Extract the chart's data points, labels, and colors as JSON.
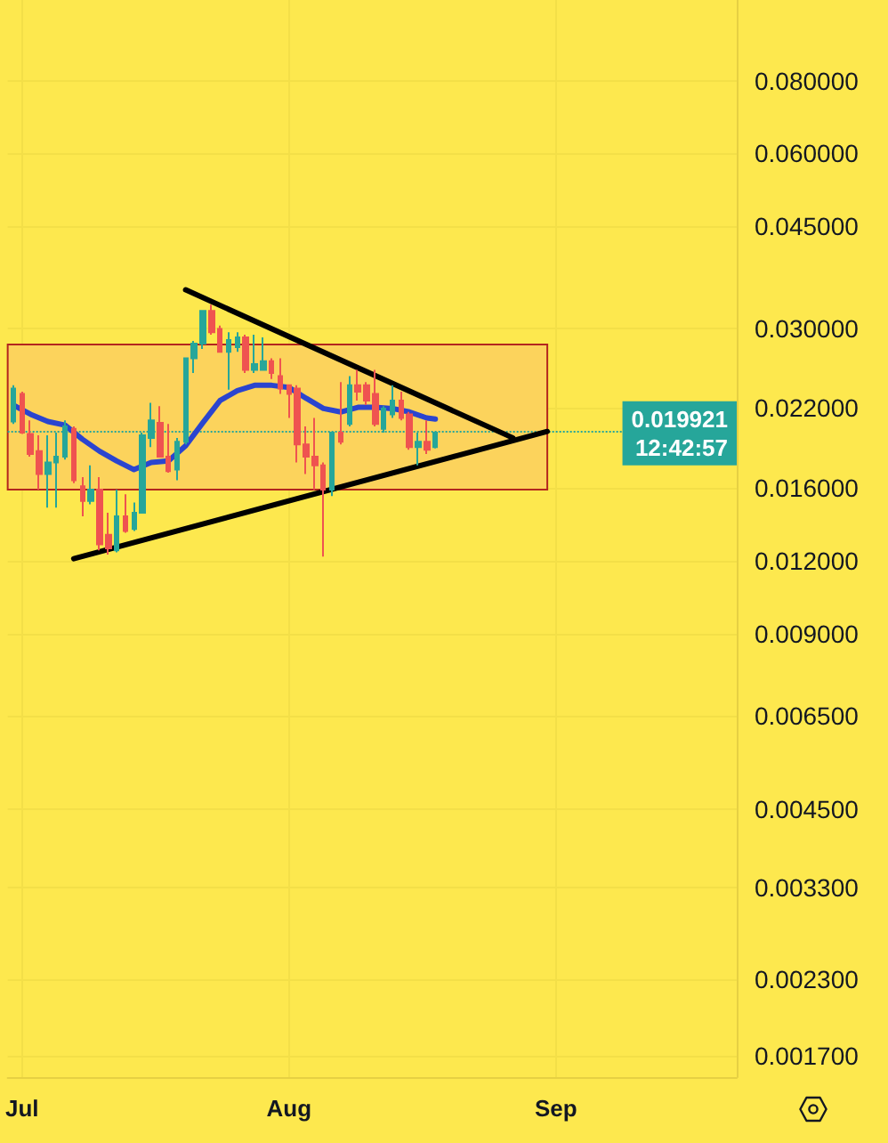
{
  "chart_data": {
    "type": "candlestick",
    "x": [
      "--06-30",
      "--07-01",
      "--07-02",
      "--07-03",
      "--07-04",
      "--07-05",
      "--07-06",
      "--07-07",
      "--07-08",
      "--07-09",
      "--07-10",
      "--07-11",
      "--07-12",
      "--07-13",
      "--07-14",
      "--07-15",
      "--07-16",
      "--07-17",
      "--07-18",
      "--07-19",
      "--07-20",
      "--07-21",
      "--07-22",
      "--07-23",
      "--07-24",
      "--07-25",
      "--07-26",
      "--07-27",
      "--07-28",
      "--07-29",
      "--07-30",
      "--07-31",
      "--08-01",
      "--08-02",
      "--08-03",
      "--08-04",
      "--08-05",
      "--08-06",
      "--08-07",
      "--08-08",
      "--08-09",
      "--08-10",
      "--08-11",
      "--08-12",
      "--08-13",
      "--08-14",
      "--08-15",
      "--08-16",
      "--08-17",
      "--08-18"
    ],
    "ohlc": [
      [
        0.0208,
        0.024,
        0.0206,
        0.0237
      ],
      [
        0.0232,
        0.0234,
        0.0198,
        0.0199
      ],
      [
        0.0198,
        0.0209,
        0.0181,
        0.0183
      ],
      [
        0.0185,
        0.0197,
        0.0159,
        0.0169
      ],
      [
        0.0169,
        0.0197,
        0.0148,
        0.0177
      ],
      [
        0.0177,
        0.0199,
        0.0148,
        0.0181
      ],
      [
        0.0181,
        0.0209,
        0.0179,
        0.0204
      ],
      [
        0.0202,
        0.0204,
        0.0163,
        0.0165
      ],
      [
        0.0161,
        0.0167,
        0.0143,
        0.0152
      ],
      [
        0.0152,
        0.0175,
        0.015,
        0.0159
      ],
      [
        0.0159,
        0.0167,
        0.0125,
        0.0128
      ],
      [
        0.0133,
        0.0145,
        0.0123,
        0.0126
      ],
      [
        0.0125,
        0.0159,
        0.0124,
        0.0143
      ],
      [
        0.0143,
        0.0156,
        0.0134,
        0.0135
      ],
      [
        0.0136,
        0.0151,
        0.0135,
        0.0145
      ],
      [
        0.0145,
        0.0199,
        0.0145,
        0.0197
      ],
      [
        0.0195,
        0.0224,
        0.0188,
        0.0209
      ],
      [
        0.0207,
        0.0221,
        0.0181,
        0.0181
      ],
      [
        0.0181,
        0.0206,
        0.017,
        0.0171
      ],
      [
        0.0172,
        0.0195,
        0.0165,
        0.0192
      ],
      [
        0.0192,
        0.0268,
        0.019,
        0.0267
      ],
      [
        0.0267,
        0.0286,
        0.0252,
        0.0283
      ],
      [
        0.0283,
        0.0323,
        0.0277,
        0.0322
      ],
      [
        0.0322,
        0.033,
        0.0293,
        0.0296
      ],
      [
        0.03,
        0.0304,
        0.0274,
        0.0274
      ],
      [
        0.0274,
        0.0296,
        0.0236,
        0.0287
      ],
      [
        0.0279,
        0.0296,
        0.0274,
        0.029
      ],
      [
        0.029,
        0.0293,
        0.0252,
        0.0255
      ],
      [
        0.0255,
        0.0293,
        0.0252,
        0.0261
      ],
      [
        0.0255,
        0.029,
        0.0255,
        0.0264
      ],
      [
        0.0264,
        0.0267,
        0.0246,
        0.0252
      ],
      [
        0.0249,
        0.0267,
        0.0232,
        0.0237
      ],
      [
        0.024,
        0.024,
        0.0211,
        0.0232
      ],
      [
        0.0237,
        0.024,
        0.0177,
        0.019
      ],
      [
        0.019,
        0.0204,
        0.0169,
        0.0181
      ],
      [
        0.0181,
        0.0211,
        0.0159,
        0.0175
      ],
      [
        0.0175,
        0.0177,
        0.0122,
        0.0159
      ],
      [
        0.0159,
        0.0199,
        0.0155,
        0.0199
      ],
      [
        0.0199,
        0.0243,
        0.019,
        0.0192
      ],
      [
        0.0206,
        0.0249,
        0.0204,
        0.024
      ],
      [
        0.024,
        0.0255,
        0.0226,
        0.0234
      ],
      [
        0.024,
        0.0243,
        0.0222,
        0.0226
      ],
      [
        0.0232,
        0.0255,
        0.0204,
        0.0206
      ],
      [
        0.0202,
        0.0221,
        0.0199,
        0.0219
      ],
      [
        0.0214,
        0.024,
        0.0211,
        0.0226
      ],
      [
        0.0226,
        0.0234,
        0.0209,
        0.0211
      ],
      [
        0.0214,
        0.0216,
        0.0186,
        0.0188
      ],
      [
        0.0188,
        0.0199,
        0.0175,
        0.0192
      ],
      [
        0.0192,
        0.0209,
        0.0183,
        0.0186
      ],
      [
        0.0188,
        0.02,
        0.0187,
        0.0199
      ]
    ],
    "colors": [
      "#26a69a",
      "#ef5350",
      "#ef5350",
      "#ef5350",
      "#26a69a",
      "#26a69a",
      "#26a69a",
      "#ef5350",
      "#ef5350",
      "#26a69a",
      "#ef5350",
      "#ef5350",
      "#26a69a",
      "#ef5350",
      "#26a69a",
      "#26a69a",
      "#26a69a",
      "#ef5350",
      "#ef5350",
      "#26a69a",
      "#26a69a",
      "#26a69a",
      "#26a69a",
      "#ef5350",
      "#ef5350",
      "#26a69a",
      "#26a69a",
      "#ef5350",
      "#26a69a",
      "#26a69a",
      "#ef5350",
      "#ef5350",
      "#ef5350",
      "#ef5350",
      "#ef5350",
      "#ef5350",
      "#ef5350",
      "#26a69a",
      "#ef5350",
      "#26a69a",
      "#ef5350",
      "#ef5350",
      "#ef5350",
      "#26a69a",
      "#26a69a",
      "#ef5350",
      "#ef5350",
      "#26a69a",
      "#ef5350",
      "#26a69a"
    ],
    "series": [
      {
        "type": "line",
        "color": "#2b45cf",
        "x": [
          "--06-30",
          "--07-02",
          "--07-04",
          "--07-06",
          "--07-08",
          "--07-10",
          "--07-12",
          "--07-14",
          "--07-16",
          "--07-18",
          "--07-20",
          "--07-22",
          "--07-24",
          "--07-26",
          "--07-28",
          "--07-30",
          "--08-01",
          "--08-03",
          "--08-05",
          "--08-07",
          "--08-09",
          "--08-11",
          "--08-13",
          "--08-15",
          "--08-17",
          "--08-18"
        ],
        "values": [
          0.0222,
          0.0214,
          0.0208,
          0.0205,
          0.0194,
          0.0185,
          0.0178,
          0.0172,
          0.0177,
          0.0178,
          0.0189,
          0.0207,
          0.0226,
          0.0235,
          0.024,
          0.024,
          0.0238,
          0.0228,
          0.0219,
          0.0216,
          0.022,
          0.022,
          0.0219,
          0.0216,
          0.0211,
          0.021
        ]
      },
      {
        "type": "line",
        "color": "#000000",
        "x": [
          "--07-20",
          "--08-27"
        ],
        "values": [
          0.035,
          0.0195
        ]
      },
      {
        "type": "line",
        "color": "#000000",
        "x": [
          "--07-07",
          "--08-31"
        ],
        "values": [
          0.0121,
          0.02
        ]
      }
    ],
    "xlim": [
      "--06-29T08:00",
      "--09-22"
    ],
    "xticks": [
      {
        "value": "--07-01",
        "label": "Jul"
      },
      {
        "value": "--08-01",
        "label": "Aug"
      },
      {
        "value": "--09-01",
        "label": "Sep"
      }
    ],
    "ylim": [
      0.00156,
      0.11
    ],
    "yticks": [
      {
        "value": 0.08,
        "label": "0.080000"
      },
      {
        "value": 0.06,
        "label": "0.060000"
      },
      {
        "value": 0.045,
        "label": "0.045000"
      },
      {
        "value": 0.03,
        "label": "0.030000"
      },
      {
        "value": 0.022,
        "label": "0.022000"
      },
      {
        "value": 0.016,
        "label": "0.016000"
      },
      {
        "value": 0.012,
        "label": "0.012000"
      },
      {
        "value": 0.009,
        "label": "0.009000"
      },
      {
        "value": 0.0065,
        "label": "0.006500"
      },
      {
        "value": 0.0045,
        "label": "0.004500"
      },
      {
        "value": 0.0033,
        "label": "0.003300"
      },
      {
        "value": 0.0023,
        "label": "0.002300"
      },
      {
        "value": 0.0017,
        "label": "0.001700"
      }
    ],
    "log": true,
    "grid": true,
    "marker": "none",
    "bands": [
      {
        "axis": "y",
        "from": 0.0159,
        "to": 0.0282,
        "color": "#fcd35c"
      }
    ],
    "ref_lines": [
      {
        "axis": "y",
        "value": 0.019921,
        "label": "0.019921\n12:42:57",
        "color": "#26a69a",
        "line_style": "dotted"
      }
    ]
  }
}
